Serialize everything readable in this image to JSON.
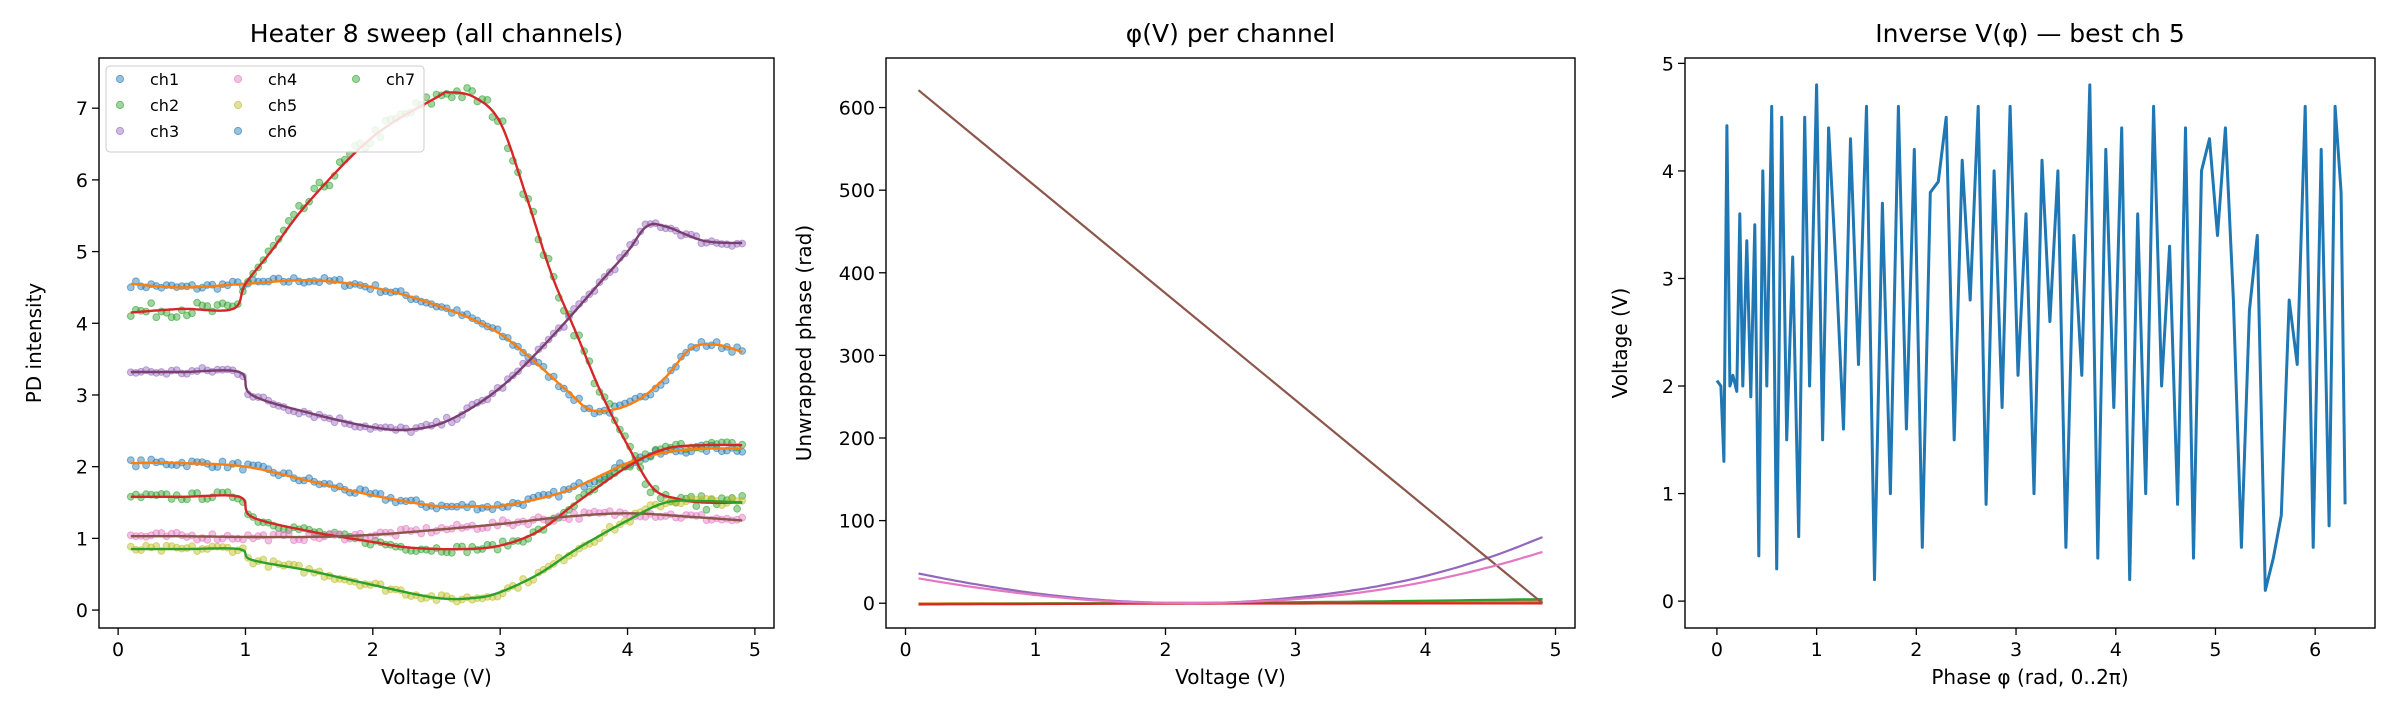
{
  "figure": {
    "panels": [
      {
        "title": "Heater 8 sweep (all channels)",
        "xlabel": "Voltage (V)",
        "ylabel": "PD intensity",
        "xlim": [
          -0.15,
          5.15
        ],
        "ylim": [
          -0.25,
          7.7
        ],
        "xticks": [
          0,
          1,
          2,
          3,
          4,
          5
        ],
        "xtick_labels": [
          "0",
          "1",
          "2",
          "3",
          "4",
          "5"
        ],
        "yticks": [
          0,
          1,
          2,
          3,
          4,
          5,
          6,
          7
        ],
        "ytick_labels": [
          "0",
          "1",
          "2",
          "3",
          "4",
          "5",
          "6",
          "7"
        ]
      },
      {
        "title": "φ(V) per channel",
        "xlabel": "Voltage (V)",
        "ylabel": "Unwrapped phase (rad)",
        "xlim": [
          -0.15,
          5.15
        ],
        "ylim": [
          -30,
          660
        ],
        "xticks": [
          0,
          1,
          2,
          3,
          4,
          5
        ],
        "xtick_labels": [
          "0",
          "1",
          "2",
          "3",
          "4",
          "5"
        ],
        "yticks": [
          0,
          100,
          200,
          300,
          400,
          500,
          600
        ],
        "ytick_labels": [
          "0",
          "100",
          "200",
          "300",
          "400",
          "500",
          "600"
        ]
      },
      {
        "title": "Inverse V(φ) — best ch 5",
        "xlabel": "Phase φ (rad, 0..2π)",
        "ylabel": "Voltage (V)",
        "xlim": [
          -0.32,
          6.6
        ],
        "ylim": [
          -0.25,
          5.05
        ],
        "xticks": [
          0,
          1,
          2,
          3,
          4,
          5,
          6
        ],
        "xtick_labels": [
          "0",
          "1",
          "2",
          "3",
          "4",
          "5",
          "6"
        ],
        "yticks": [
          0,
          1,
          2,
          3,
          4,
          5
        ],
        "ytick_labels": [
          "0",
          "1",
          "2",
          "3",
          "4",
          "5"
        ]
      }
    ]
  },
  "chart_data": [
    {
      "type": "scatter",
      "title": "Heater 8 sweep (all channels)",
      "xlabel": "Voltage (V)",
      "ylabel": "PD intensity",
      "xlim": [
        -0.15,
        5.15
      ],
      "ylim": [
        -0.25,
        7.7
      ],
      "grid": false,
      "legend": {
        "placement": "upper-left",
        "ncol": 3,
        "entries": [
          {
            "name": "ch1",
            "color": "#1f77b4"
          },
          {
            "name": "ch2",
            "color": "#2ca02c"
          },
          {
            "name": "ch3",
            "color": "#9467bd"
          },
          {
            "name": "ch4",
            "color": "#e377c2"
          },
          {
            "name": "ch5",
            "color": "#bcbd22"
          },
          {
            "name": "ch6",
            "color": "#1f77b4"
          },
          {
            "name": "ch7",
            "color": "#2ca02c"
          }
        ]
      },
      "curves": [
        {
          "scatter_color": "#1f77b4",
          "fit_color": "#ff7f0e",
          "x": [
            0.1,
            0.5,
            1.0,
            1.5,
            2.0,
            2.5,
            3.0,
            3.5,
            3.7,
            3.9,
            4.1,
            4.3,
            4.5,
            4.7,
            4.9
          ],
          "y": [
            4.55,
            4.5,
            4.55,
            4.6,
            4.5,
            4.25,
            3.85,
            3.1,
            2.8,
            2.8,
            2.95,
            3.25,
            3.65,
            3.7,
            3.6
          ]
        },
        {
          "scatter_color": "#1f77b4",
          "fit_color": "#ff7f0e",
          "x": [
            0.1,
            0.5,
            1.0,
            1.5,
            2.0,
            2.5,
            2.8,
            3.0,
            3.5,
            4.0,
            4.3,
            4.6,
            4.9
          ],
          "y": [
            2.05,
            2.05,
            2.0,
            1.8,
            1.6,
            1.45,
            1.45,
            1.45,
            1.65,
            2.05,
            2.2,
            2.25,
            2.25
          ]
        },
        {
          "scatter_color": "#2ca02c",
          "fit_color": "#d62728",
          "x": [
            0.1,
            0.5,
            0.9,
            1.0,
            1.2,
            1.5,
            2.0,
            2.5,
            2.6,
            2.8,
            3.0,
            3.2,
            3.4,
            3.6,
            3.8,
            4.0,
            4.2,
            4.4,
            4.6,
            4.9
          ],
          "y": [
            4.15,
            4.2,
            4.2,
            4.55,
            5.0,
            5.7,
            6.6,
            7.15,
            7.22,
            7.15,
            6.8,
            5.8,
            4.7,
            3.85,
            3.0,
            2.3,
            1.7,
            1.55,
            1.5,
            1.5
          ]
        },
        {
          "scatter_color": "#2ca02c",
          "fit_color": "#d62728",
          "x": [
            0.1,
            0.5,
            0.95,
            1.05,
            1.5,
            2.0,
            2.3,
            2.7,
            3.0,
            3.3,
            3.6,
            4.0,
            4.3,
            4.6,
            4.9
          ],
          "y": [
            1.58,
            1.58,
            1.58,
            1.3,
            1.1,
            0.95,
            0.87,
            0.85,
            0.9,
            1.1,
            1.5,
            2.0,
            2.25,
            2.3,
            2.3
          ]
        },
        {
          "scatter_color": "#9467bd",
          "fit_color": "#7a3f6e",
          "x": [
            0.1,
            0.5,
            0.95,
            1.05,
            1.5,
            2.0,
            2.3,
            2.6,
            3.0,
            3.4,
            3.8,
            4.0,
            4.15,
            4.3,
            4.6,
            4.9
          ],
          "y": [
            3.32,
            3.32,
            3.32,
            3.0,
            2.75,
            2.55,
            2.52,
            2.65,
            3.1,
            3.8,
            4.6,
            5.0,
            5.35,
            5.35,
            5.15,
            5.12
          ]
        },
        {
          "scatter_color": "#e377c2",
          "fit_color": "#8c564b",
          "x": [
            0.1,
            0.5,
            1.0,
            1.5,
            2.0,
            2.5,
            3.0,
            3.5,
            4.0,
            4.5,
            4.9
          ],
          "y": [
            1.03,
            1.03,
            1.02,
            1.02,
            1.05,
            1.12,
            1.2,
            1.3,
            1.35,
            1.3,
            1.25
          ]
        },
        {
          "scatter_color": "#bcbd22",
          "fit_color": "#2ca02c",
          "x": [
            0.1,
            0.5,
            0.95,
            1.05,
            1.5,
            2.0,
            2.5,
            2.8,
            3.0,
            3.3,
            3.6,
            4.0,
            4.3,
            4.6,
            4.9
          ],
          "y": [
            0.85,
            0.85,
            0.85,
            0.7,
            0.55,
            0.35,
            0.17,
            0.17,
            0.25,
            0.5,
            0.85,
            1.25,
            1.5,
            1.52,
            1.5
          ]
        }
      ]
    },
    {
      "type": "line",
      "title": "φ(V) per channel",
      "xlabel": "Voltage (V)",
      "ylabel": "Unwrapped phase (rad)",
      "xlim": [
        -0.15,
        5.15
      ],
      "ylim": [
        -30,
        660
      ],
      "grid": false,
      "series": [
        {
          "color": "#1f77b4",
          "x": [
            0.1,
            1.0,
            2.0,
            3.0,
            4.0,
            4.9
          ],
          "y": [
            -0.5,
            -0.3,
            0.0,
            0.5,
            1.5,
            3.0
          ]
        },
        {
          "color": "#ff7f0e",
          "x": [
            0.1,
            1.0,
            2.0,
            3.0,
            4.0,
            4.9
          ],
          "y": [
            -0.3,
            -0.2,
            0.1,
            0.4,
            1.0,
            2.0
          ]
        },
        {
          "color": "#2ca02c",
          "x": [
            0.1,
            1.0,
            2.0,
            3.0,
            4.0,
            4.9
          ],
          "y": [
            -1.0,
            -0.5,
            0.2,
            1.2,
            3.0,
            5.0
          ]
        },
        {
          "color": "#d62728",
          "x": [
            0.1,
            1.0,
            2.0,
            3.0,
            4.0,
            4.9
          ],
          "y": [
            -1.5,
            -1.0,
            -0.5,
            -0.3,
            -0.2,
            -0.2
          ]
        },
        {
          "color": "#9467bd",
          "x": [
            0.1,
            0.5,
            1.0,
            1.5,
            2.0,
            2.5,
            3.0,
            3.5,
            4.0,
            4.5,
            4.9
          ],
          "y": [
            36,
            24,
            12,
            4,
            0.5,
            1,
            7,
            17,
            33,
            56,
            80
          ]
        },
        {
          "color": "#8c564b",
          "x": [
            0.1,
            4.9
          ],
          "y": [
            621,
            0
          ]
        },
        {
          "color": "#e377c2",
          "x": [
            0.1,
            0.5,
            1.0,
            1.5,
            2.0,
            2.5,
            3.0,
            3.5,
            4.0,
            4.5,
            4.9
          ],
          "y": [
            30,
            20,
            10,
            3,
            0.5,
            1,
            5,
            13,
            26,
            44,
            62
          ]
        }
      ]
    },
    {
      "type": "line",
      "title": "Inverse V(φ) — best ch 5",
      "xlabel": "Phase φ (rad, 0..2π)",
      "ylabel": "Voltage (V)",
      "xlim": [
        -0.32,
        6.6
      ],
      "ylim": [
        -0.25,
        5.05
      ],
      "grid": false,
      "series": [
        {
          "color": "#1f77b4",
          "x": [
            0.0,
            0.04,
            0.07,
            0.1,
            0.13,
            0.16,
            0.2,
            0.23,
            0.26,
            0.3,
            0.34,
            0.38,
            0.42,
            0.46,
            0.5,
            0.55,
            0.6,
            0.65,
            0.7,
            0.76,
            0.82,
            0.88,
            0.93,
            1.0,
            1.06,
            1.12,
            1.2,
            1.27,
            1.34,
            1.42,
            1.5,
            1.58,
            1.66,
            1.74,
            1.82,
            1.9,
            1.98,
            2.06,
            2.14,
            2.22,
            2.3,
            2.38,
            2.46,
            2.54,
            2.62,
            2.7,
            2.78,
            2.86,
            2.94,
            3.02,
            3.1,
            3.18,
            3.26,
            3.34,
            3.42,
            3.5,
            3.58,
            3.66,
            3.74,
            3.82,
            3.9,
            3.98,
            4.06,
            4.14,
            4.22,
            4.3,
            4.38,
            4.46,
            4.54,
            4.62,
            4.7,
            4.78,
            4.86,
            4.94,
            5.02,
            5.1,
            5.18,
            5.26,
            5.34,
            5.42,
            5.5,
            5.58,
            5.66,
            5.74,
            5.82,
            5.9,
            5.98,
            6.06,
            6.14,
            6.2,
            6.26,
            6.3
          ],
          "y": [
            2.05,
            2.0,
            1.3,
            4.42,
            2.0,
            2.1,
            1.95,
            3.6,
            2.0,
            3.35,
            1.9,
            3.5,
            0.42,
            4.0,
            2.0,
            4.6,
            0.3,
            4.5,
            1.5,
            3.2,
            0.6,
            4.5,
            2.0,
            4.8,
            1.5,
            4.4,
            3.0,
            1.6,
            4.3,
            2.2,
            4.6,
            0.2,
            3.7,
            1.0,
            4.6,
            1.6,
            4.2,
            0.5,
            3.8,
            3.9,
            4.5,
            1.5,
            4.1,
            2.8,
            4.6,
            0.9,
            4.0,
            1.8,
            4.6,
            2.1,
            3.6,
            1.0,
            4.1,
            2.6,
            4.0,
            0.5,
            3.4,
            2.1,
            4.8,
            0.4,
            4.2,
            1.8,
            4.4,
            0.2,
            3.6,
            1.0,
            4.6,
            2.0,
            3.3,
            0.9,
            4.4,
            0.4,
            4.0,
            4.3,
            3.4,
            4.4,
            2.8,
            0.5,
            2.7,
            3.4,
            0.1,
            0.4,
            0.8,
            2.8,
            2.2,
            4.6,
            0.5,
            4.2,
            0.7,
            4.6,
            3.8,
            0.9
          ]
        }
      ]
    }
  ]
}
